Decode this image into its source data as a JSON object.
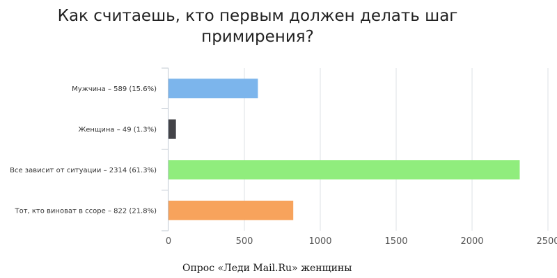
{
  "chart_data": {
    "type": "bar",
    "orientation": "horizontal",
    "title": "Как считаешь, кто первым должен делать шаг примирения?",
    "categories": [
      "Мужчина – 589 (15.6%)",
      "Женщина – 49 (1.3%)",
      "Все зависит от ситуации – 2314 (61.3%)",
      "Тот, кто виноват в ссоре – 822 (21.8%)"
    ],
    "values": [
      589,
      49,
      2314,
      822
    ],
    "colors": [
      "#7cb5ec",
      "#434348",
      "#90ed7d",
      "#f7a35c"
    ],
    "xlim": [
      0,
      2500
    ],
    "xticks": [
      0,
      500,
      1000,
      1500,
      2000,
      2500
    ],
    "grid": true,
    "legend": "none"
  },
  "footer": {
    "source": "Опрос «Леди Mail.Ru» женщины"
  }
}
